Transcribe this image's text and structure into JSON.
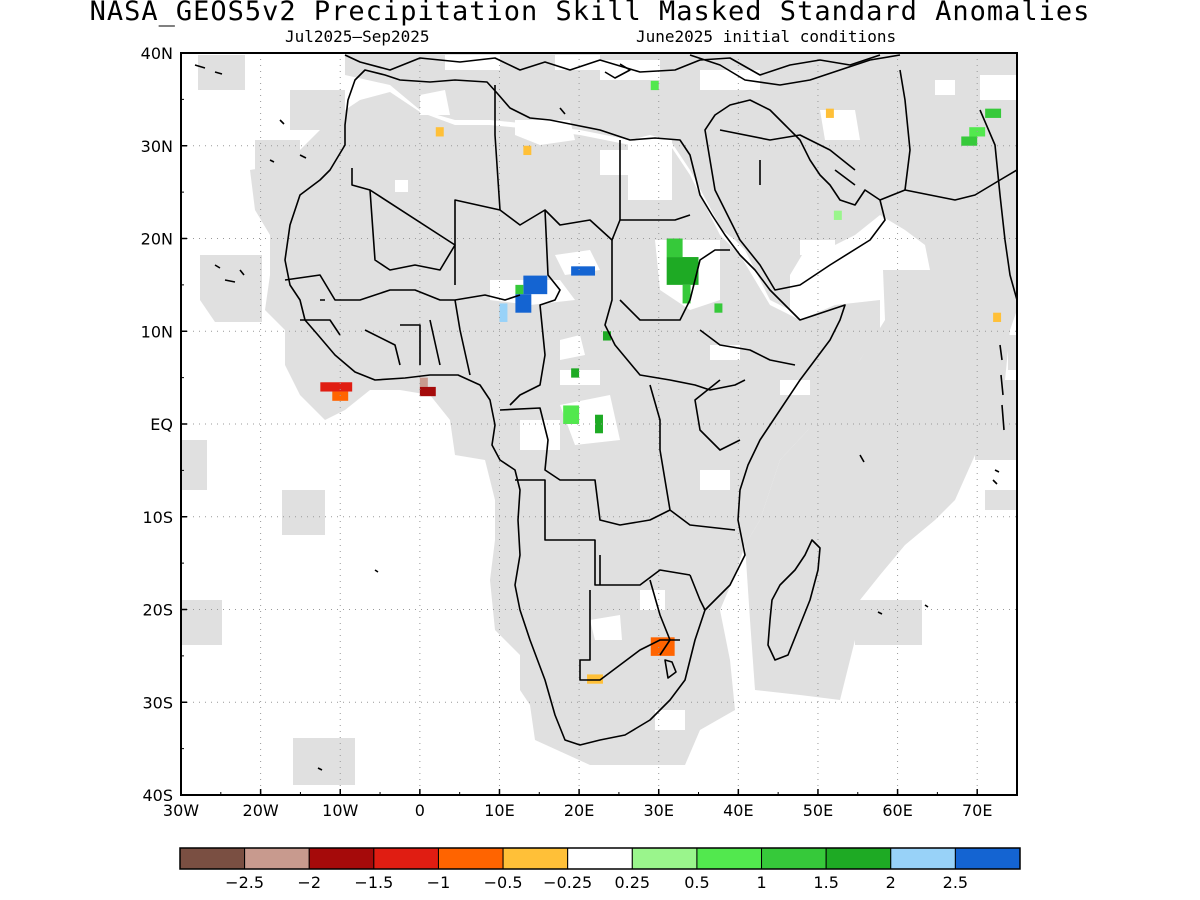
{
  "title": "NASA_GEOS5v2 Precipitation Skill Masked Standard Anomalies",
  "subtitle_left": "Jul2025–Sep2025",
  "subtitle_right": "June2025 initial conditions",
  "map": {
    "lon_range": [
      -30,
      75
    ],
    "lat_range": [
      -40,
      40
    ],
    "x_ticks": [
      {
        "lon": -30,
        "label": "30W"
      },
      {
        "lon": -20,
        "label": "20W"
      },
      {
        "lon": -10,
        "label": "10W"
      },
      {
        "lon": 0,
        "label": "0"
      },
      {
        "lon": 10,
        "label": "10E"
      },
      {
        "lon": 20,
        "label": "20E"
      },
      {
        "lon": 30,
        "label": "30E"
      },
      {
        "lon": 40,
        "label": "40E"
      },
      {
        "lon": 50,
        "label": "50E"
      },
      {
        "lon": 60,
        "label": "60E"
      },
      {
        "lon": 70,
        "label": "70E"
      }
    ],
    "y_ticks": [
      {
        "lat": 40,
        "label": "40N"
      },
      {
        "lat": 30,
        "label": "30N"
      },
      {
        "lat": 20,
        "label": "20N"
      },
      {
        "lat": 10,
        "label": "10N"
      },
      {
        "lat": 0,
        "label": "EQ"
      },
      {
        "lat": -10,
        "label": "10S"
      },
      {
        "lat": -20,
        "label": "20S"
      },
      {
        "lat": -30,
        "label": "30S"
      },
      {
        "lat": -40,
        "label": "40S"
      }
    ],
    "grid": "dotted",
    "mask_color": "#e0e0e0",
    "coastline_color": "#000000"
  },
  "colorbar": {
    "colors": [
      "#7a4f42",
      "#c89a8e",
      "#a50a0a",
      "#e01d12",
      "#ff6400",
      "#ffc038",
      "#ffffff",
      "#9af58c",
      "#52e84e",
      "#36c93a",
      "#1eaa24",
      "#98d2f8",
      "#1464d2"
    ],
    "labels": [
      "−2.5",
      "−2",
      "−1.5",
      "−1",
      "−0.5",
      "−0.25",
      "0.25",
      "0.5",
      "1",
      "1.5",
      "2",
      "2.5"
    ]
  },
  "anomaly_patches": [
    {
      "lon": -12.5,
      "lat": 3.5,
      "w": 4,
      "h": 1,
      "color": "#e01d12"
    },
    {
      "lon": -11,
      "lat": 2.5,
      "w": 2,
      "h": 1,
      "color": "#ff6400"
    },
    {
      "lon": 0,
      "lat": 4,
      "w": 1,
      "h": 1,
      "color": "#c89a8e"
    },
    {
      "lon": 0,
      "lat": 3,
      "w": 2,
      "h": 1,
      "color": "#a50a0a"
    },
    {
      "lon": 2,
      "lat": 31,
      "w": 1,
      "h": 1,
      "color": "#ffc038"
    },
    {
      "lon": 13,
      "lat": 29,
      "w": 1,
      "h": 1,
      "color": "#ffc038"
    },
    {
      "lon": 19,
      "lat": 16,
      "w": 3,
      "h": 1,
      "color": "#1464d2"
    },
    {
      "lon": 13,
      "lat": 14,
      "w": 3,
      "h": 2,
      "color": "#1464d2"
    },
    {
      "lon": 12,
      "lat": 12,
      "w": 2,
      "h": 2,
      "color": "#1464d2"
    },
    {
      "lon": 10,
      "lat": 11,
      "w": 1,
      "h": 2,
      "color": "#98d2f8"
    },
    {
      "lon": 12,
      "lat": 14,
      "w": 1,
      "h": 1,
      "color": "#36c93a"
    },
    {
      "lon": 31,
      "lat": 18,
      "w": 2,
      "h": 2,
      "color": "#36c93a"
    },
    {
      "lon": 31,
      "lat": 15,
      "w": 4,
      "h": 3,
      "color": "#1eaa24"
    },
    {
      "lon": 33,
      "lat": 13,
      "w": 1,
      "h": 2,
      "color": "#36c93a"
    },
    {
      "lon": 37,
      "lat": 12,
      "w": 1,
      "h": 1,
      "color": "#36c93a"
    },
    {
      "lon": 23,
      "lat": 9,
      "w": 1,
      "h": 1,
      "color": "#1eaa24"
    },
    {
      "lon": 19,
      "lat": 5,
      "w": 1,
      "h": 1,
      "color": "#1eaa24"
    },
    {
      "lon": 18,
      "lat": 0,
      "w": 2,
      "h": 2,
      "color": "#52e84e"
    },
    {
      "lon": 22,
      "lat": -1,
      "w": 1,
      "h": 2,
      "color": "#1eaa24"
    },
    {
      "lon": 29,
      "lat": 36,
      "w": 1,
      "h": 1,
      "color": "#52e84e"
    },
    {
      "lon": 52,
      "lat": 22,
      "w": 1,
      "h": 1,
      "color": "#9af58c"
    },
    {
      "lon": 51,
      "lat": 33,
      "w": 1,
      "h": 1,
      "color": "#ffc038"
    },
    {
      "lon": 68,
      "lat": 30,
      "w": 2,
      "h": 1,
      "color": "#36c93a"
    },
    {
      "lon": 69,
      "lat": 31,
      "w": 2,
      "h": 1,
      "color": "#52e84e"
    },
    {
      "lon": 71,
      "lat": 33,
      "w": 2,
      "h": 1,
      "color": "#36c93a"
    },
    {
      "lon": 72,
      "lat": 11,
      "w": 1,
      "h": 1,
      "color": "#ffc038"
    },
    {
      "lon": 29,
      "lat": -25,
      "w": 3,
      "h": 2,
      "color": "#ff6400"
    },
    {
      "lon": 21,
      "lat": -28,
      "w": 2,
      "h": 1,
      "color": "#ffc038"
    }
  ]
}
